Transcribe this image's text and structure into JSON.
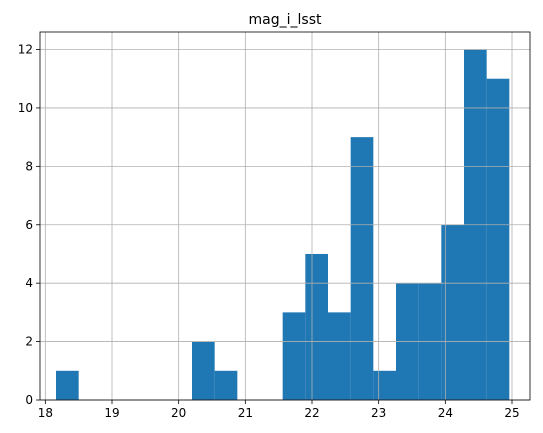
{
  "chart_data": {
    "type": "bar",
    "title": "mag_i_lsst",
    "xlabel": "",
    "ylabel": "",
    "xlim": [
      17.92,
      25.27
    ],
    "ylim": [
      0,
      12.6
    ],
    "xticks": [
      18,
      19,
      20,
      21,
      22,
      23,
      24,
      25
    ],
    "yticks": [
      0,
      2,
      4,
      6,
      8,
      10,
      12
    ],
    "grid": true,
    "bar_color": "#1f77b4",
    "bin_edges": [
      18.16,
      18.5,
      18.84,
      19.18,
      19.52,
      19.86,
      20.2,
      20.54,
      20.88,
      21.22,
      21.56,
      21.9,
      22.24,
      22.58,
      22.92,
      23.26,
      23.6,
      23.94,
      24.28,
      24.62,
      24.96
    ],
    "values": [
      1,
      0,
      0,
      0,
      0,
      0,
      2,
      1,
      0,
      0,
      3,
      5,
      3,
      9,
      1,
      4,
      4,
      6,
      12,
      11
    ]
  }
}
